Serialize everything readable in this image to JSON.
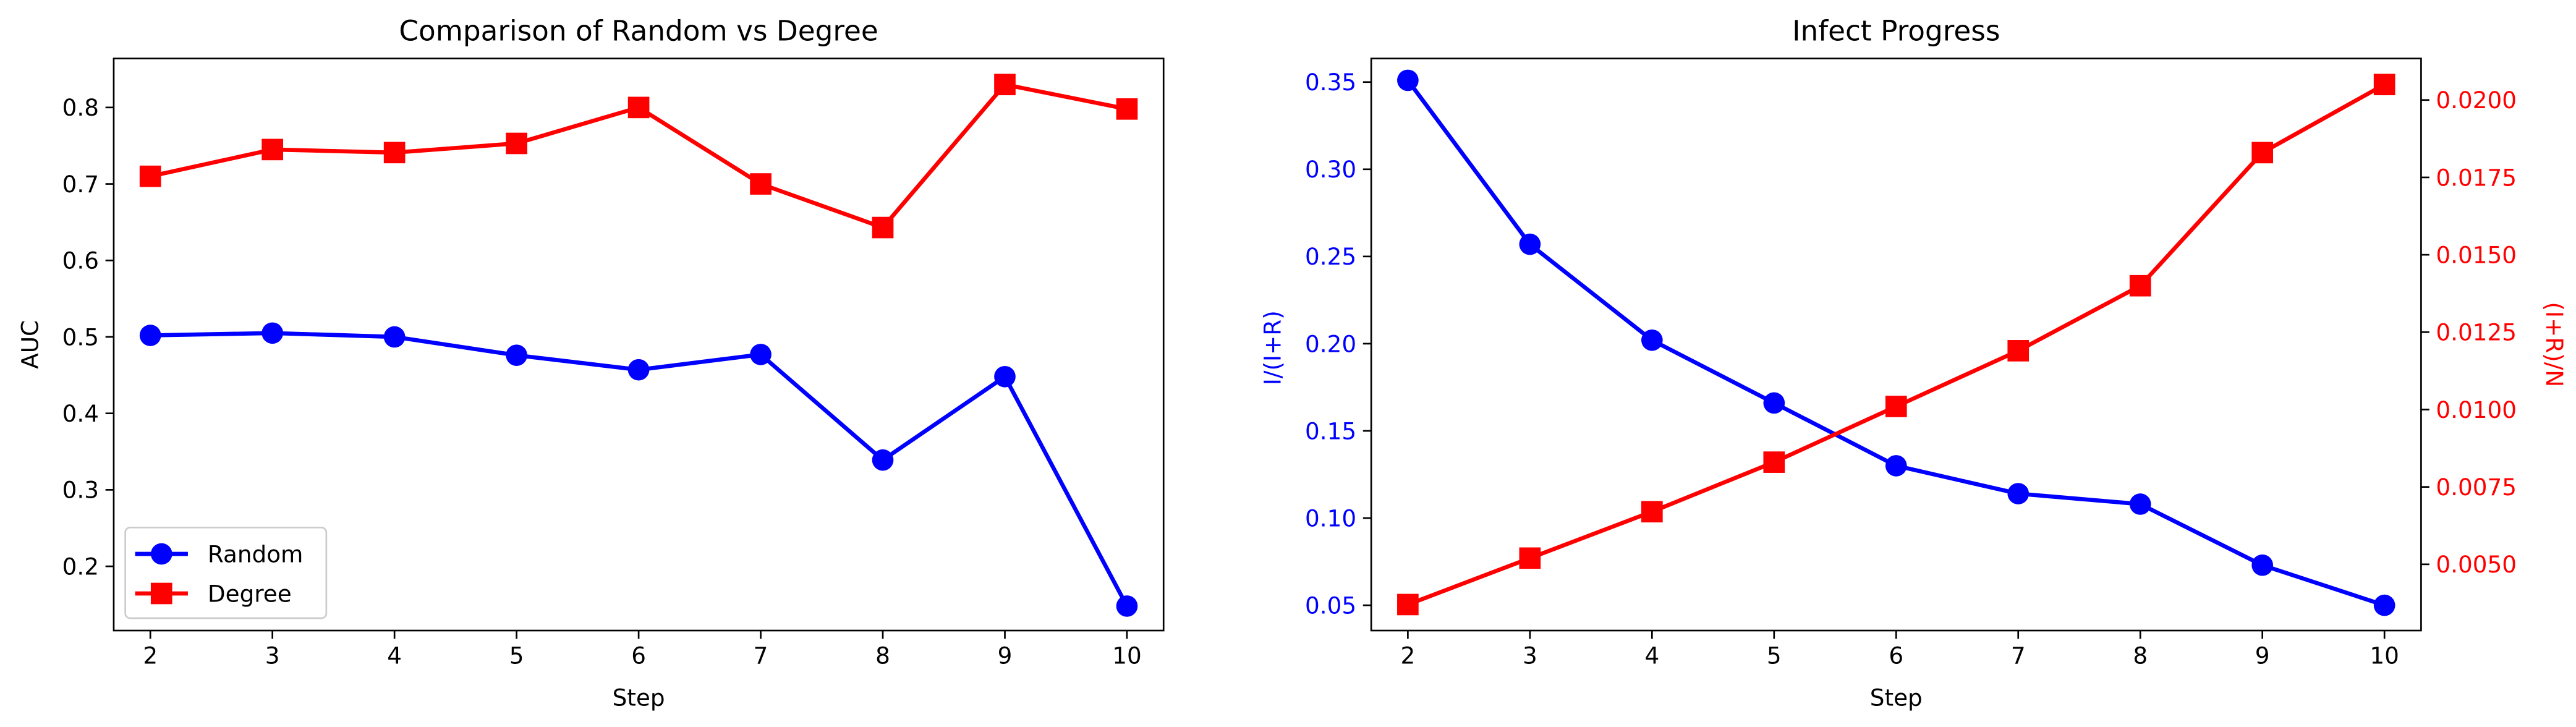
{
  "chart_data": [
    {
      "type": "line",
      "title": "Comparison of Random vs Degree",
      "xlabel": "Step",
      "ylabel": "AUC",
      "x": [
        2,
        3,
        4,
        5,
        6,
        7,
        8,
        9,
        10
      ],
      "xticks": [
        "2",
        "3",
        "4",
        "5",
        "6",
        "7",
        "8",
        "9",
        "10"
      ],
      "xlim": [
        1.7,
        10.3
      ],
      "ylim": [
        0.116,
        0.864
      ],
      "yticks": [
        "0.2",
        "0.3",
        "0.4",
        "0.5",
        "0.6",
        "0.7",
        "0.8"
      ],
      "yticks_values": [
        0.2,
        0.3,
        0.4,
        0.5,
        0.6,
        0.7,
        0.8
      ],
      "grid": false,
      "legend": "lower left",
      "series": [
        {
          "name": "Random",
          "marker": "circle",
          "color": "#0000ff",
          "values": [
            0.502,
            0.505,
            0.5,
            0.476,
            0.457,
            0.477,
            0.339,
            0.448,
            0.148
          ]
        },
        {
          "name": "Degree",
          "marker": "square",
          "color": "#ff0000",
          "values": [
            0.71,
            0.745,
            0.741,
            0.753,
            0.8,
            0.7,
            0.643,
            0.83,
            0.798
          ]
        }
      ]
    },
    {
      "type": "line",
      "title": "Infect Progress",
      "xlabel": "Step",
      "ylabel": "I/(I+R)",
      "ylabel_right": "(I+R)/N",
      "x": [
        2,
        3,
        4,
        5,
        6,
        7,
        8,
        9,
        10
      ],
      "xticks": [
        "2",
        "3",
        "4",
        "5",
        "6",
        "7",
        "8",
        "9",
        "10"
      ],
      "xlim": [
        1.7,
        10.3
      ],
      "ylim": [
        0.0355,
        0.3635
      ],
      "yticks": [
        "0.05",
        "0.10",
        "0.15",
        "0.20",
        "0.25",
        "0.30",
        "0.35"
      ],
      "yticks_values": [
        0.05,
        0.1,
        0.15,
        0.2,
        0.25,
        0.3,
        0.35
      ],
      "ylim_right": [
        0.00286,
        0.02134
      ],
      "yticks_right": [
        "0.0050",
        "0.0075",
        "0.0100",
        "0.0125",
        "0.0150",
        "0.0175",
        "0.0200"
      ],
      "yticks_right_values": [
        0.005,
        0.0075,
        0.01,
        0.0125,
        0.015,
        0.0175,
        0.02
      ],
      "grid": false,
      "series": [
        {
          "axis": "left",
          "marker": "circle",
          "color": "#0000ff",
          "values": [
            0.351,
            0.257,
            0.202,
            0.166,
            0.13,
            0.114,
            0.108,
            0.073,
            0.05
          ]
        },
        {
          "axis": "right",
          "marker": "square",
          "color": "#ff0000",
          "values": [
            0.0037,
            0.0052,
            0.0067,
            0.0083,
            0.0101,
            0.0119,
            0.014,
            0.0183,
            0.0205
          ]
        }
      ]
    }
  ]
}
